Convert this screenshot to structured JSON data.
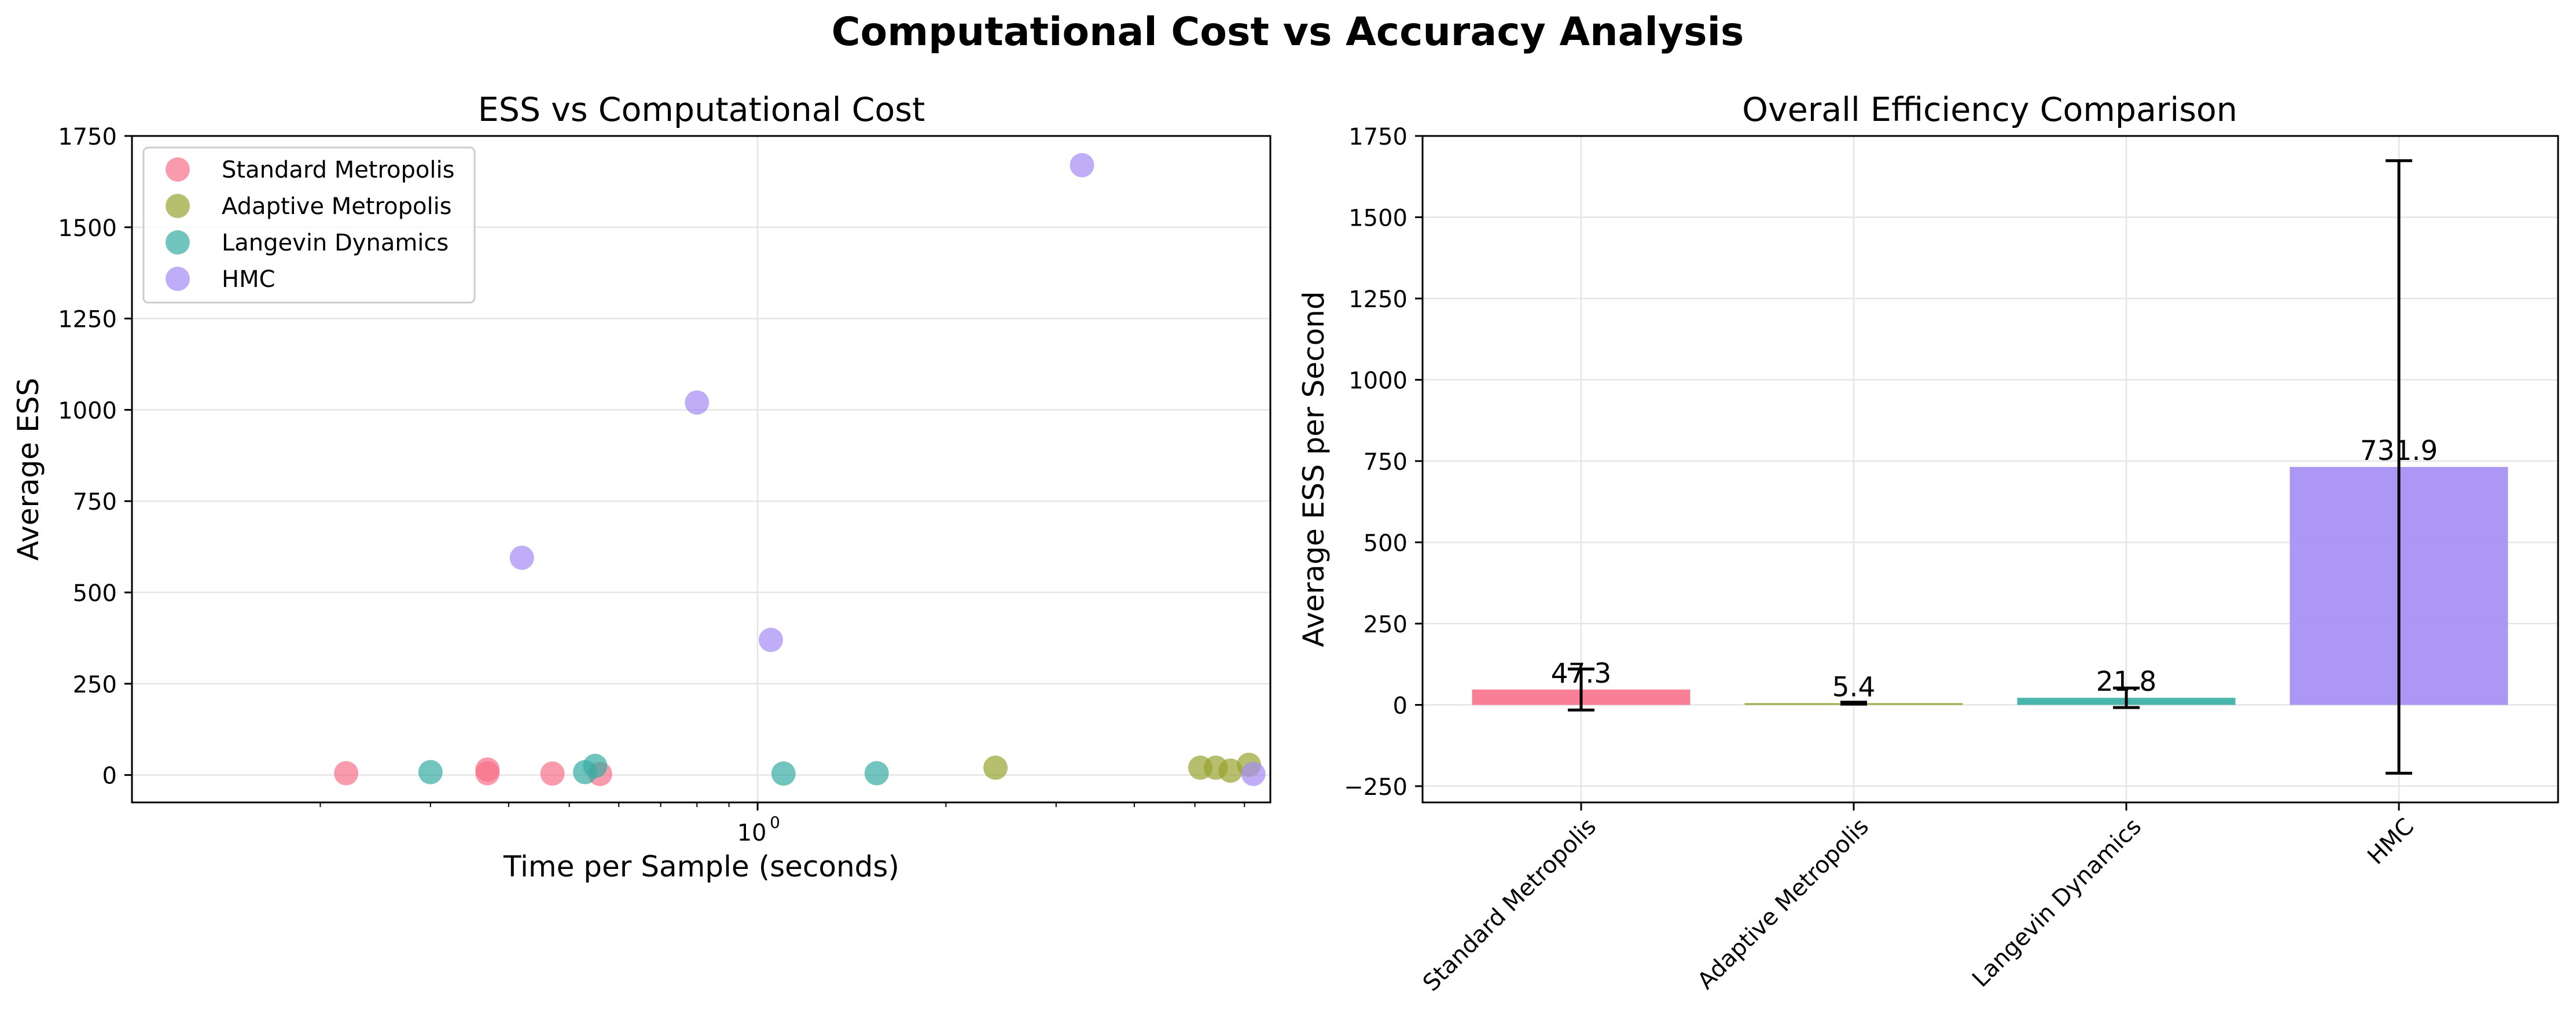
{
  "figure": {
    "title": "Computational Cost vs Accuracy Analysis"
  },
  "colors": {
    "standard": "#f77189",
    "adaptive": "#97a431",
    "langevin": "#36ada4",
    "hmc": "#a48cf4"
  },
  "chart_data": [
    {
      "type": "scatter",
      "title": "ESS vs Computational Cost",
      "xlabel": "Time per Sample (seconds)",
      "ylabel": "Average ESS",
      "xscale": "log",
      "xlim": [
        0.1,
        6.6
      ],
      "ylim": [
        -75,
        1750
      ],
      "yticks": [
        0,
        250,
        500,
        750,
        1000,
        1250,
        1500,
        1750
      ],
      "xtick_label": "10",
      "xtick_label_exp": "0",
      "grid": true,
      "legend": "top-left",
      "series": [
        {
          "name": "Standard Metropolis",
          "color_key": "standard",
          "points": [
            [
              0.22,
              5
            ],
            [
              0.37,
              15
            ],
            [
              0.37,
              5
            ],
            [
              0.47,
              4
            ],
            [
              0.56,
              3
            ]
          ]
        },
        {
          "name": "Adaptive Metropolis",
          "color_key": "adaptive",
          "points": [
            [
              2.4,
              20
            ],
            [
              5.1,
              20
            ],
            [
              5.4,
              20
            ],
            [
              5.7,
              12
            ],
            [
              6.1,
              28
            ]
          ]
        },
        {
          "name": "Langevin Dynamics",
          "color_key": "langevin",
          "points": [
            [
              0.3,
              8
            ],
            [
              0.53,
              8
            ],
            [
              0.55,
              25
            ],
            [
              1.1,
              4
            ],
            [
              1.55,
              5
            ]
          ]
        },
        {
          "name": "HMC",
          "color_key": "hmc",
          "points": [
            [
              3.3,
              1670
            ],
            [
              0.8,
              1020
            ],
            [
              0.42,
              595
            ],
            [
              1.05,
              370
            ],
            [
              6.2,
              3
            ]
          ]
        }
      ]
    },
    {
      "type": "bar",
      "title": "Overall Efficiency Comparison",
      "xlabel": "",
      "ylabel": "Average ESS per Second",
      "ylim": [
        -300,
        1750
      ],
      "yticks": [
        -250,
        0,
        250,
        500,
        750,
        1000,
        1250,
        1500,
        1750
      ],
      "grid": true,
      "categories": [
        "Standard Metropolis",
        "Adaptive Metropolis",
        "Langevin Dynamics",
        "HMC"
      ],
      "color_keys": [
        "standard",
        "adaptive",
        "langevin",
        "hmc"
      ],
      "values": [
        47.3,
        5.4,
        21.8,
        731.9
      ],
      "value_labels": [
        "47.3",
        "5.4",
        "21.8",
        "731.9"
      ],
      "errors": [
        63,
        3,
        30,
        942
      ]
    }
  ]
}
